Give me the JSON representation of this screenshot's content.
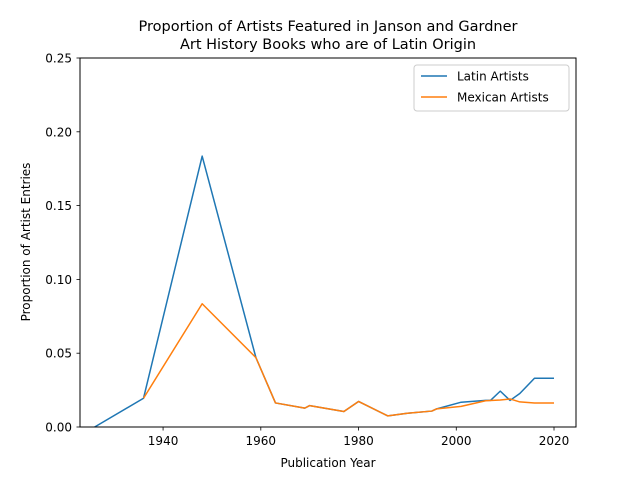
{
  "chart_data": {
    "type": "line",
    "title_lines": [
      "Proportion of Artists Featured in Janson and Gardner",
      "Art History Books who are of Latin Origin"
    ],
    "xlabel": "Publication Year",
    "ylabel": "Proportion of Artist Entries",
    "xlim": [
      1923,
      2024.5
    ],
    "ylim": [
      0,
      0.25
    ],
    "xticks": [
      1940,
      1960,
      1980,
      2000,
      2020
    ],
    "yticks": [
      0.0,
      0.05,
      0.1,
      0.15,
      0.2,
      0.25
    ],
    "ytick_labels": [
      "0.00",
      "0.05",
      "0.10",
      "0.15",
      "0.20",
      "0.25"
    ],
    "grid": false,
    "legend_position": "top-right",
    "series": [
      {
        "name": "Latin Artists",
        "color": "#1f77b4",
        "points": [
          [
            1926,
            0.0
          ],
          [
            1936,
            0.0195
          ],
          [
            1948,
            0.1835
          ],
          [
            1959,
            0.047
          ],
          [
            1963,
            0.0163
          ],
          [
            1969,
            0.0128
          ],
          [
            1970,
            0.0145
          ],
          [
            1977,
            0.0105
          ],
          [
            1980,
            0.0173
          ],
          [
            1986,
            0.0075
          ],
          [
            1990,
            0.0093
          ],
          [
            1995,
            0.0108
          ],
          [
            1996,
            0.0123
          ],
          [
            2001,
            0.0168
          ],
          [
            2006,
            0.018
          ],
          [
            2007,
            0.018
          ],
          [
            2009,
            0.0243
          ],
          [
            2011,
            0.018
          ],
          [
            2013,
            0.0227
          ],
          [
            2016,
            0.033
          ],
          [
            2020,
            0.033
          ]
        ]
      },
      {
        "name": "Mexican Artists",
        "color": "#ff7f0e",
        "points": [
          [
            1936,
            0.0195
          ],
          [
            1948,
            0.0835
          ],
          [
            1959,
            0.047
          ],
          [
            1963,
            0.0163
          ],
          [
            1969,
            0.0128
          ],
          [
            1970,
            0.0145
          ],
          [
            1977,
            0.0105
          ],
          [
            1980,
            0.0173
          ],
          [
            1986,
            0.0075
          ],
          [
            1990,
            0.0093
          ],
          [
            1995,
            0.0108
          ],
          [
            1996,
            0.0123
          ],
          [
            2001,
            0.014
          ],
          [
            2006,
            0.0178
          ],
          [
            2009,
            0.0183
          ],
          [
            2011,
            0.019
          ],
          [
            2013,
            0.017
          ],
          [
            2016,
            0.0163
          ],
          [
            2020,
            0.0163
          ]
        ]
      }
    ]
  }
}
